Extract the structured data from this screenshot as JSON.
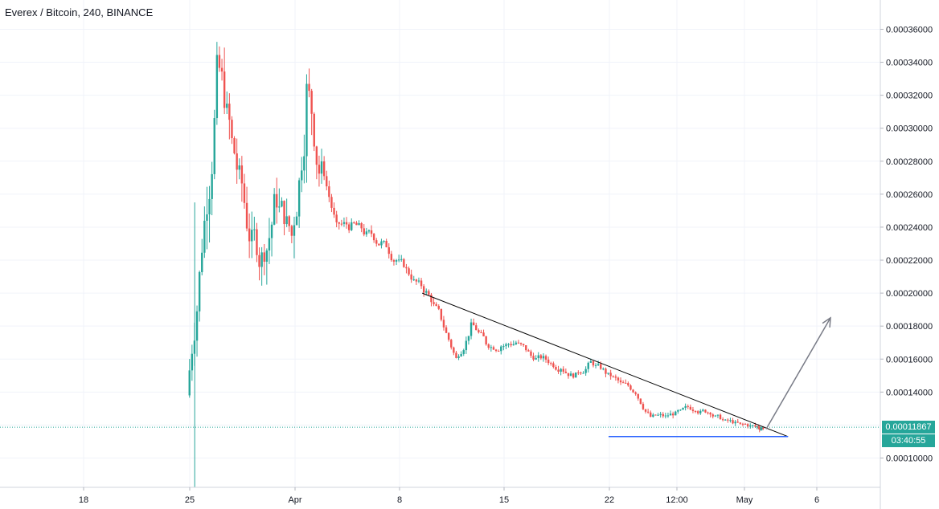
{
  "header": {
    "title": "Everex / Bitcoin, 240, BINANCE"
  },
  "price_scale": {
    "ticks": [
      "0.00036000",
      "0.00034000",
      "0.00032000",
      "0.00030000",
      "0.00028000",
      "0.00026000",
      "0.00024000",
      "0.00022000",
      "0.00020000",
      "0.00018000",
      "0.00016000",
      "0.00014000",
      "0.00010000"
    ]
  },
  "time_scale": {
    "ticks": [
      "18",
      "25",
      "Apr",
      "8",
      "15",
      "22",
      "12:00",
      "May",
      "6"
    ]
  },
  "last_price": {
    "value": "0.00011867",
    "countdown": "03:40:55"
  },
  "colors": {
    "up": "#26a69a",
    "down": "#ef5350",
    "last_price": "#26a69a",
    "support_line": "#2962ff",
    "trend_line": "#000000",
    "arrow": "#787b86"
  },
  "chart_data": {
    "type": "candlestick",
    "symbol": "Everex / Bitcoin",
    "interval": "240",
    "exchange": "BINANCE",
    "ylim": [
      8.5e-05,
      0.000375
    ],
    "xlim": [
      "Mar 11",
      "May 10"
    ],
    "closes": [
      {
        "date": "Mar 25",
        "close": 0.00023
      },
      {
        "date": "Mar 26",
        "close": 0.00033
      },
      {
        "date": "Mar 27",
        "close": 0.00029
      },
      {
        "date": "Mar 28",
        "close": 0.000245
      },
      {
        "date": "Mar 29",
        "close": 0.00022
      },
      {
        "date": "Mar 30",
        "close": 0.00026
      },
      {
        "date": "Mar 31",
        "close": 0.000235
      },
      {
        "date": "Apr 1",
        "close": 0.00032
      },
      {
        "date": "Apr 2",
        "close": 0.00027
      },
      {
        "date": "Apr 3",
        "close": 0.00024
      },
      {
        "date": "Apr 4",
        "close": 0.00024
      },
      {
        "date": "Apr 5",
        "close": 0.000235
      },
      {
        "date": "Apr 6",
        "close": 0.00023
      },
      {
        "date": "Apr 7",
        "close": 0.00022
      },
      {
        "date": "Apr 8",
        "close": 0.00021
      },
      {
        "date": "Apr 9",
        "close": 0.0002
      },
      {
        "date": "Apr 10",
        "close": 0.000185
      },
      {
        "date": "Apr 11",
        "close": 0.00016
      },
      {
        "date": "Apr 12",
        "close": 0.00018
      },
      {
        "date": "Apr 13",
        "close": 0.00017
      },
      {
        "date": "Apr 14",
        "close": 0.000168
      },
      {
        "date": "Apr 15",
        "close": 0.00017
      },
      {
        "date": "Apr 16",
        "close": 0.000162
      },
      {
        "date": "Apr 17",
        "close": 0.00016
      },
      {
        "date": "Apr 18",
        "close": 0.000155
      },
      {
        "date": "Apr 19",
        "close": 0.00015
      },
      {
        "date": "Apr 20",
        "close": 0.000158
      },
      {
        "date": "Apr 21",
        "close": 0.000152
      },
      {
        "date": "Apr 22",
        "close": 0.000145
      },
      {
        "date": "Apr 23",
        "close": 0.00014
      },
      {
        "date": "Apr 24",
        "close": 0.000125
      },
      {
        "date": "Apr 25",
        "close": 0.000125
      },
      {
        "date": "Apr 26",
        "close": 0.000128
      },
      {
        "date": "Apr 27",
        "close": 0.00013
      },
      {
        "date": "Apr 28",
        "close": 0.000128
      },
      {
        "date": "Apr 29",
        "close": 0.000122
      },
      {
        "date": "Apr 30",
        "close": 0.00012
      },
      {
        "date": "May 1",
        "close": 0.000119
      },
      {
        "date": "May 2",
        "close": 0.00011867
      }
    ],
    "annotations": {
      "trend_line": [
        {
          "date": "Apr 9",
          "price": 0.0002
        },
        {
          "date": "May 4",
          "price": 0.000113
        }
      ],
      "support_line": [
        {
          "date": "Apr 22",
          "price": 0.000113
        },
        {
          "date": "May 4",
          "price": 0.000113
        }
      ],
      "arrow": [
        {
          "date": "May 2",
          "price": 0.00012
        },
        {
          "date": "May 7",
          "price": 0.000185
        }
      ]
    },
    "grid": true
  }
}
